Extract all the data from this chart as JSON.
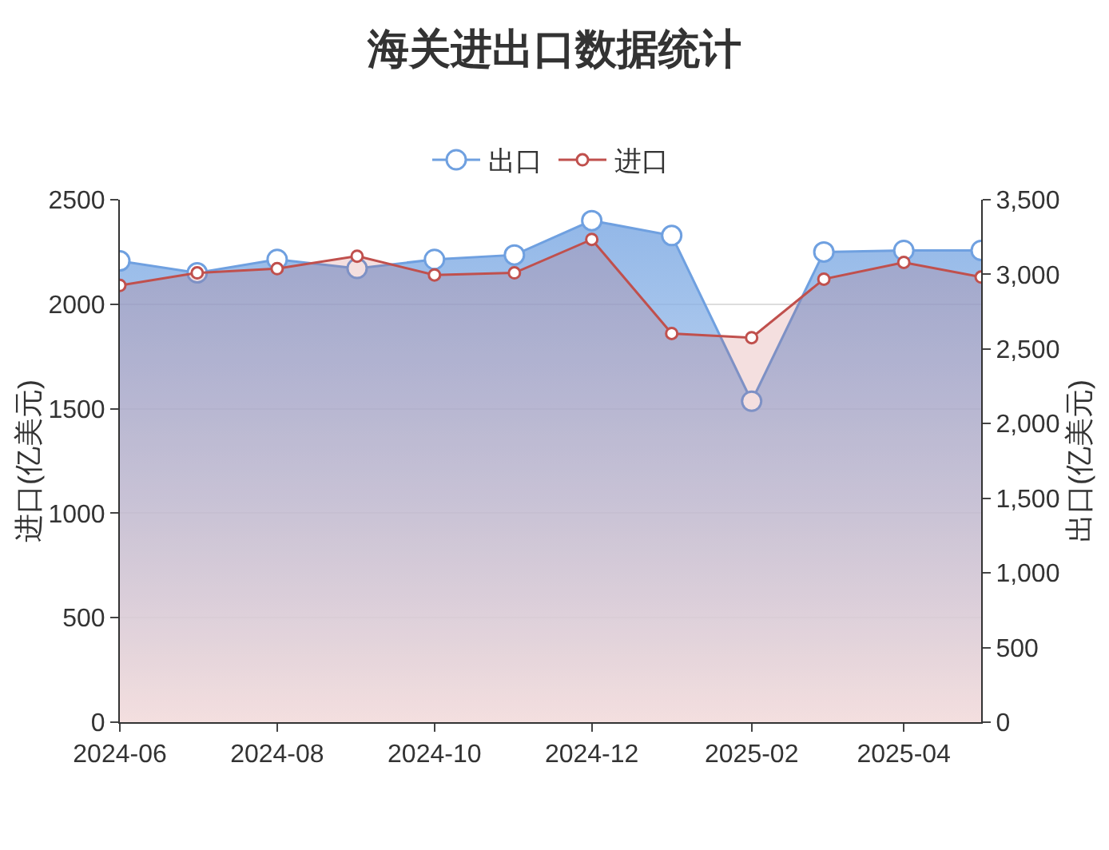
{
  "chart_data": {
    "type": "area",
    "title": "海关进出口数据统计",
    "ylabel": "进口(亿美元)",
    "y2label": "出口(亿美元)",
    "x": [
      "2024-06",
      "2024-07",
      "2024-08",
      "2024-09",
      "2024-10",
      "2024-11",
      "2024-12",
      "2025-01",
      "2025-02",
      "2025-03",
      "2025-04",
      "2025-05"
    ],
    "xlim": [
      "2024-06",
      "2025-05"
    ],
    "xticks": [
      {
        "value": "2024-06",
        "label": "2024-06"
      },
      {
        "value": "2024-08",
        "label": "2024-08"
      },
      {
        "value": "2024-10",
        "label": "2024-10"
      },
      {
        "value": "2024-12",
        "label": "2024-12"
      },
      {
        "value": "2025-02",
        "label": "2025-02"
      },
      {
        "value": "2025-04",
        "label": "2025-04"
      }
    ],
    "ylim": [
      0,
      2500
    ],
    "yticks": [
      0,
      500,
      1000,
      1500,
      2000,
      2500
    ],
    "y2lim": [
      0,
      3500
    ],
    "y2ticks": [
      0,
      500,
      {
        "value": 1000,
        "label": "1,000"
      },
      {
        "value": 1500,
        "label": "1,500"
      },
      {
        "value": 2000,
        "label": "2,000"
      },
      {
        "value": 2500,
        "label": "2,500"
      },
      {
        "value": 3000,
        "label": "3,000"
      },
      {
        "value": 3500,
        "label": "3,500"
      }
    ],
    "series": [
      {
        "name": "出口",
        "color": "#6fa0e0",
        "axis": "y2",
        "values": [
          3090,
          3010,
          3100,
          3040,
          3100,
          3130,
          3360,
          3260,
          2150,
          3150,
          3160,
          3160
        ]
      },
      {
        "name": "进口",
        "color": "#c0504d",
        "values": [
          2090,
          2150,
          2170,
          2230,
          2140,
          2150,
          2310,
          1860,
          1840,
          2120,
          2200,
          2130
        ]
      }
    ],
    "marker": "circle",
    "grid": "y",
    "legend": "top"
  }
}
